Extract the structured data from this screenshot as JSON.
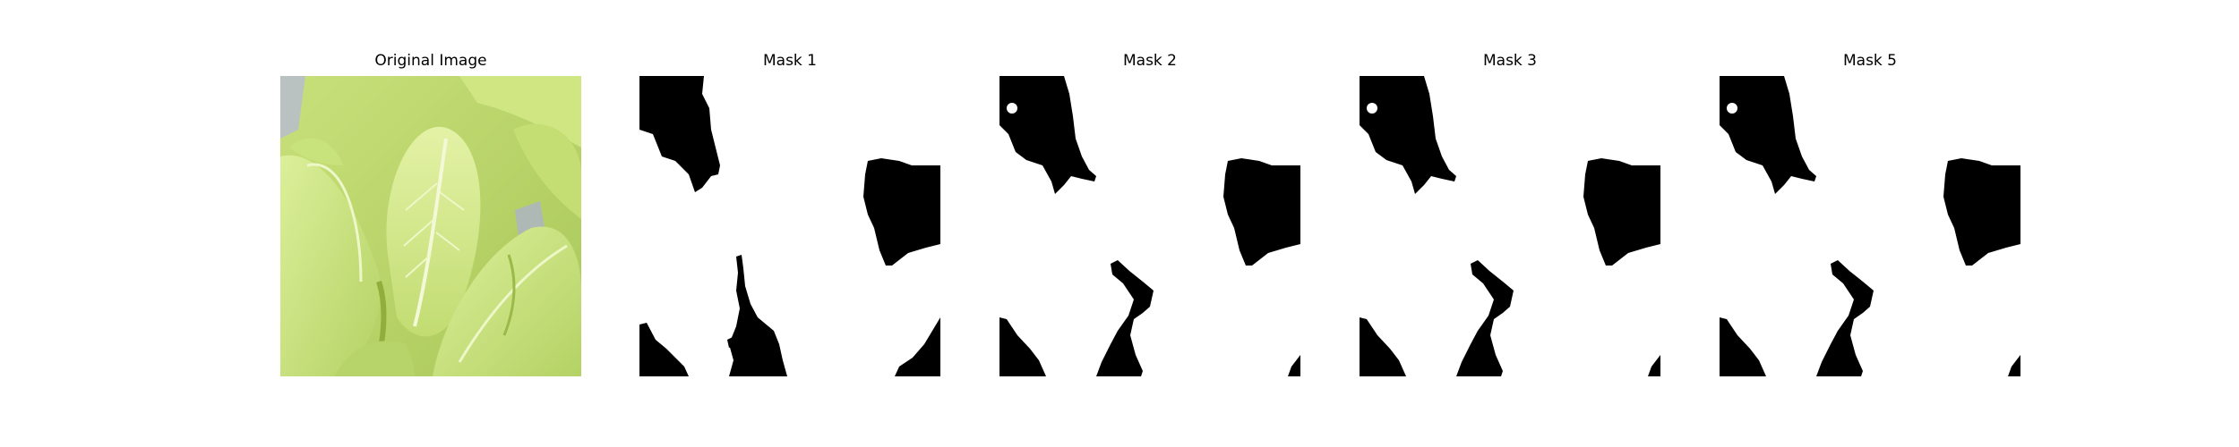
{
  "figure": {
    "panels": [
      {
        "title": "Original Image",
        "kind": "photo"
      },
      {
        "title": "Mask 1",
        "kind": "mask"
      },
      {
        "title": "Mask 2",
        "kind": "mask"
      },
      {
        "title": "Mask 3",
        "kind": "mask"
      },
      {
        "title": "Mask 5",
        "kind": "mask"
      }
    ]
  },
  "colors": {
    "background": "#ffffff",
    "mask_foreground": "#000000",
    "mask_background": "#ffffff",
    "leaf_light": "#d6ec8e",
    "leaf_mid": "#bcd96a",
    "leaf_dark": "#8fae3c"
  }
}
